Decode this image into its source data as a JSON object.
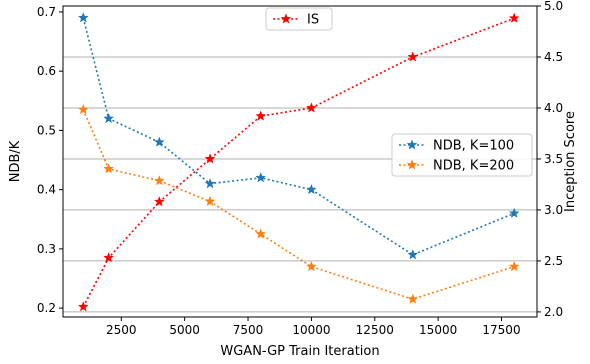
{
  "chart_data": {
    "type": "line",
    "title": "",
    "xlabel": "WGAN-GP Train Iteration",
    "ylabel_left": "NDB/K",
    "ylabel_right": "Inception Score",
    "xlim": [
      200,
      18900
    ],
    "ylim_left": [
      0.185,
      0.71
    ],
    "ylim_right": [
      1.95,
      5.0
    ],
    "x_ticks": [
      2500,
      5000,
      7500,
      10000,
      12500,
      15000,
      17500
    ],
    "y_left_ticks": [
      0.2,
      0.3,
      0.4,
      0.5,
      0.6,
      0.7
    ],
    "y_right_ticks": [
      2.0,
      2.5,
      3.0,
      3.5,
      4.0,
      4.5,
      5.0
    ],
    "grid": "horizontal lines at right-axis ticks",
    "series": [
      {
        "name": "NDB, K=100",
        "axis": "left",
        "color": "#1f77b4",
        "x": [
          1000,
          2000,
          4000,
          6000,
          8000,
          10000,
          14000,
          18000
        ],
        "values": [
          0.69,
          0.52,
          0.48,
          0.41,
          0.42,
          0.4,
          0.29,
          0.36
        ]
      },
      {
        "name": "NDB, K=200",
        "axis": "left",
        "color": "#ff7f0e",
        "x": [
          1000,
          2000,
          4000,
          6000,
          8000,
          10000,
          14000,
          18000
        ],
        "values": [
          0.535,
          0.435,
          0.415,
          0.38,
          0.325,
          0.27,
          0.215,
          0.27
        ]
      },
      {
        "name": "IS",
        "axis": "right",
        "color": "#ff0000",
        "x": [
          1000,
          2000,
          4000,
          6000,
          8000,
          10000,
          14000,
          18000
        ],
        "values": [
          2.05,
          2.53,
          3.08,
          3.5,
          3.92,
          4.0,
          4.5,
          4.88
        ]
      }
    ],
    "legends": [
      {
        "placement": "top-center",
        "entries": [
          "IS"
        ]
      },
      {
        "placement": "center-right",
        "entries": [
          "NDB, K=100",
          "NDB, K=200"
        ]
      }
    ]
  }
}
